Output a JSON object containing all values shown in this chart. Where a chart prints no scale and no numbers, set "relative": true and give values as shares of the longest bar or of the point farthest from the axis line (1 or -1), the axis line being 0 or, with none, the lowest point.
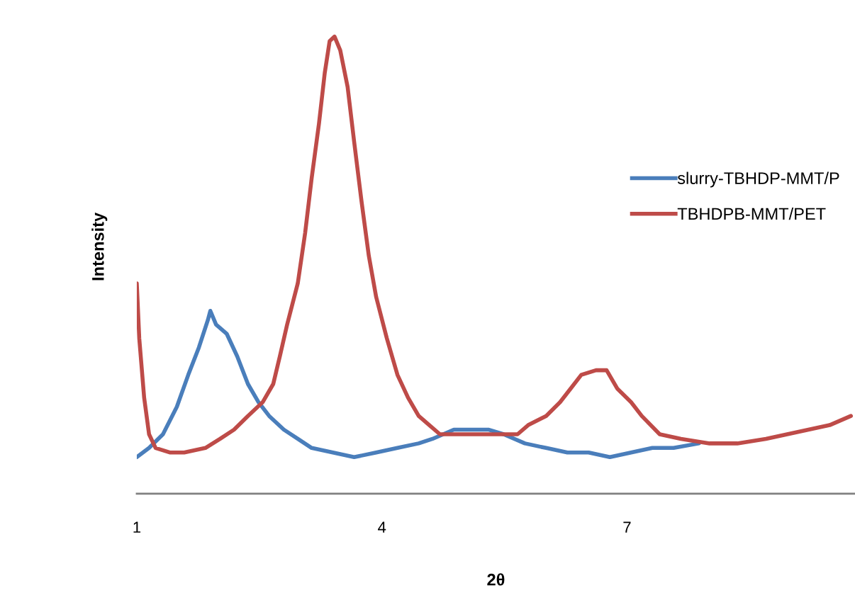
{
  "chart_data": {
    "type": "line",
    "xlabel": "2θ",
    "ylabel": "Intensity",
    "relative": true,
    "xlim": [
      1,
      9.79
    ],
    "xticks": [
      1,
      4,
      7
    ],
    "grid": false,
    "legend": "right",
    "marker": "none",
    "line_style": "solid",
    "series": [
      {
        "name": "slurry-TBHDP-MMT/P",
        "color": "#4a7ebb",
        "x": [
          1.0,
          1.15,
          1.32,
          1.49,
          1.63,
          1.76,
          1.87,
          1.9,
          1.97,
          2.1,
          2.23,
          2.36,
          2.49,
          2.62,
          2.8,
          2.97,
          3.14,
          3.4,
          3.66,
          3.93,
          4.19,
          4.45,
          4.62,
          4.88,
          5.05,
          5.31,
          5.49,
          5.75,
          6.01,
          6.27,
          6.53,
          6.79,
          7.05,
          7.31,
          7.57,
          7.88
        ],
        "values": [
          0.08,
          0.1,
          0.13,
          0.19,
          0.26,
          0.32,
          0.38,
          0.4,
          0.37,
          0.35,
          0.3,
          0.24,
          0.2,
          0.17,
          0.14,
          0.12,
          0.1,
          0.09,
          0.08,
          0.09,
          0.1,
          0.11,
          0.12,
          0.14,
          0.14,
          0.14,
          0.13,
          0.11,
          0.1,
          0.09,
          0.09,
          0.08,
          0.09,
          0.1,
          0.1,
          0.11
        ]
      },
      {
        "name": "TBHDPB-MMT/PET",
        "color": "#be4b48",
        "x": [
          1.0,
          1.03,
          1.09,
          1.15,
          1.23,
          1.41,
          1.58,
          1.84,
          2.02,
          2.19,
          2.36,
          2.54,
          2.67,
          2.75,
          2.84,
          2.97,
          3.06,
          3.14,
          3.23,
          3.3,
          3.36,
          3.42,
          3.49,
          3.58,
          3.66,
          3.75,
          3.84,
          3.93,
          4.06,
          4.19,
          4.32,
          4.45,
          4.58,
          4.71,
          4.88,
          5.14,
          5.4,
          5.66,
          5.79,
          6.01,
          6.18,
          6.31,
          6.44,
          6.62,
          6.75,
          6.88,
          7.05,
          7.18,
          7.4,
          7.66,
          8.01,
          8.35,
          8.7,
          8.96,
          9.22,
          9.48,
          9.74
        ],
        "values": [
          0.46,
          0.34,
          0.21,
          0.13,
          0.1,
          0.09,
          0.09,
          0.1,
          0.12,
          0.14,
          0.17,
          0.2,
          0.24,
          0.3,
          0.37,
          0.46,
          0.57,
          0.69,
          0.81,
          0.92,
          0.99,
          1.0,
          0.97,
          0.89,
          0.77,
          0.64,
          0.52,
          0.43,
          0.34,
          0.26,
          0.21,
          0.17,
          0.15,
          0.13,
          0.13,
          0.13,
          0.13,
          0.13,
          0.15,
          0.17,
          0.2,
          0.23,
          0.26,
          0.27,
          0.27,
          0.23,
          0.2,
          0.17,
          0.13,
          0.12,
          0.11,
          0.11,
          0.12,
          0.13,
          0.14,
          0.15,
          0.17
        ]
      }
    ]
  }
}
